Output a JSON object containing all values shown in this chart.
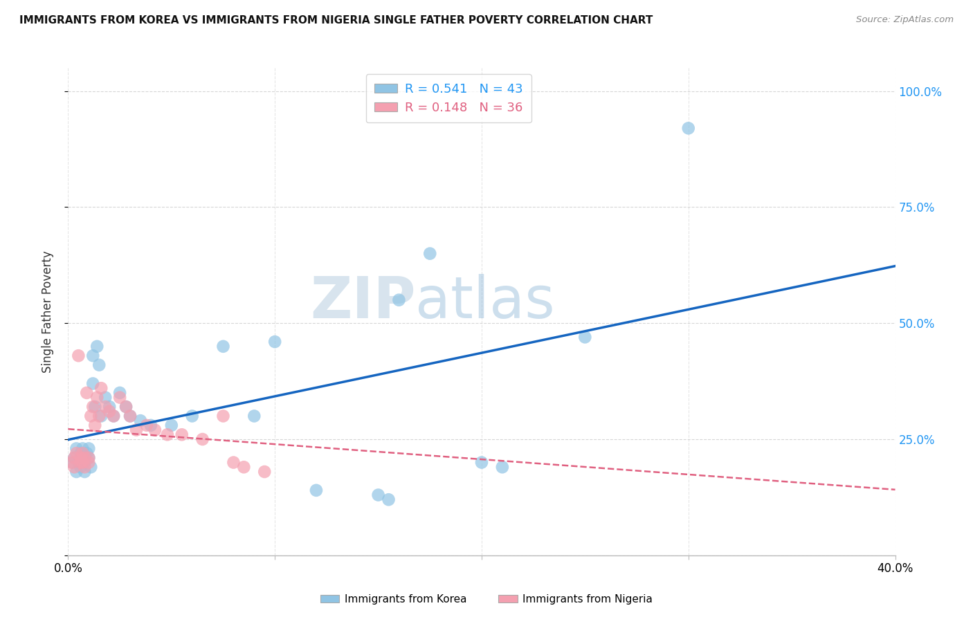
{
  "title": "IMMIGRANTS FROM KOREA VS IMMIGRANTS FROM NIGERIA SINGLE FATHER POVERTY CORRELATION CHART",
  "source": "Source: ZipAtlas.com",
  "xlabel_korea": "Immigrants from Korea",
  "xlabel_nigeria": "Immigrants from Nigeria",
  "ylabel": "Single Father Poverty",
  "xlim": [
    0.0,
    0.4
  ],
  "ylim": [
    0.0,
    1.05
  ],
  "r_korea": 0.541,
  "n_korea": 43,
  "r_nigeria": 0.148,
  "n_nigeria": 36,
  "korea_color": "#90c4e4",
  "nigeria_color": "#f4a0b0",
  "line_korea_color": "#1565c0",
  "line_nigeria_color": "#e06080",
  "watermark_zip_color": "#c8d8e8",
  "watermark_atlas_color": "#a8c8e0",
  "korea_scatter_x": [
    0.002,
    0.003,
    0.004,
    0.004,
    0.005,
    0.006,
    0.006,
    0.007,
    0.007,
    0.008,
    0.008,
    0.009,
    0.01,
    0.01,
    0.011,
    0.012,
    0.012,
    0.013,
    0.014,
    0.015,
    0.016,
    0.018,
    0.02,
    0.022,
    0.025,
    0.028,
    0.03,
    0.035,
    0.04,
    0.05,
    0.06,
    0.075,
    0.09,
    0.1,
    0.12,
    0.15,
    0.155,
    0.16,
    0.175,
    0.2,
    0.21,
    0.25,
    0.3
  ],
  "korea_scatter_y": [
    0.2,
    0.21,
    0.18,
    0.23,
    0.2,
    0.22,
    0.19,
    0.21,
    0.23,
    0.2,
    0.18,
    0.22,
    0.21,
    0.23,
    0.19,
    0.43,
    0.37,
    0.32,
    0.45,
    0.41,
    0.3,
    0.34,
    0.32,
    0.3,
    0.35,
    0.32,
    0.3,
    0.29,
    0.28,
    0.28,
    0.3,
    0.45,
    0.3,
    0.46,
    0.14,
    0.13,
    0.12,
    0.55,
    0.65,
    0.2,
    0.19,
    0.47,
    0.92
  ],
  "nigeria_scatter_x": [
    0.002,
    0.003,
    0.003,
    0.004,
    0.005,
    0.006,
    0.006,
    0.007,
    0.007,
    0.008,
    0.008,
    0.009,
    0.01,
    0.01,
    0.011,
    0.012,
    0.013,
    0.014,
    0.015,
    0.016,
    0.018,
    0.02,
    0.022,
    0.025,
    0.028,
    0.03,
    0.033,
    0.038,
    0.042,
    0.048,
    0.055,
    0.065,
    0.075,
    0.08,
    0.085,
    0.095
  ],
  "nigeria_scatter_y": [
    0.2,
    0.21,
    0.19,
    0.22,
    0.43,
    0.21,
    0.2,
    0.22,
    0.2,
    0.21,
    0.19,
    0.35,
    0.21,
    0.2,
    0.3,
    0.32,
    0.28,
    0.34,
    0.3,
    0.36,
    0.32,
    0.31,
    0.3,
    0.34,
    0.32,
    0.3,
    0.27,
    0.28,
    0.27,
    0.26,
    0.26,
    0.25,
    0.3,
    0.2,
    0.19,
    0.18
  ]
}
